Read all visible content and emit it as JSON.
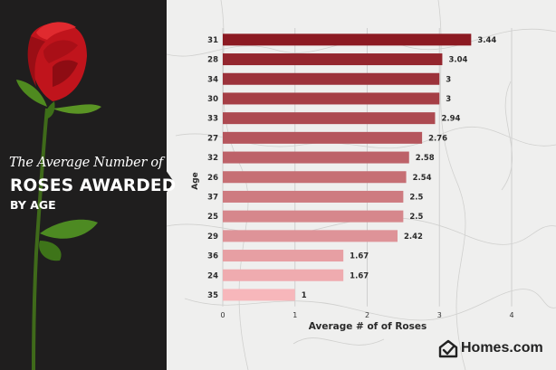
{
  "title": {
    "script": "The Average Number of",
    "main": "ROSES AWARDED",
    "sub": "BY AGE"
  },
  "brand": {
    "name": "Homes.com"
  },
  "colors": {
    "panel": "#1f1e1e",
    "bar_dark": "#8c1a22",
    "bar_light": "#f7b7bb"
  },
  "chart_data": {
    "type": "bar",
    "orientation": "horizontal",
    "categories": [
      "31",
      "28",
      "34",
      "30",
      "33",
      "27",
      "32",
      "26",
      "37",
      "25",
      "29",
      "36",
      "24",
      "35"
    ],
    "values": [
      3.44,
      3.04,
      3,
      3,
      2.94,
      2.76,
      2.58,
      2.54,
      2.5,
      2.5,
      2.42,
      1.67,
      1.67,
      1
    ],
    "value_labels": [
      "3.44",
      "3.04",
      "3",
      "3",
      "2.94",
      "2.76",
      "2.58",
      "2.54",
      "2.5",
      "2.5",
      "2.42",
      "1.67",
      "1.67",
      "1"
    ],
    "xlabel": "Average # of of Roses",
    "ylabel": "Age",
    "xlim": [
      0,
      4
    ],
    "xticks": [
      "0",
      "1",
      "2",
      "3",
      "4"
    ],
    "grid": true,
    "legend": "none"
  }
}
